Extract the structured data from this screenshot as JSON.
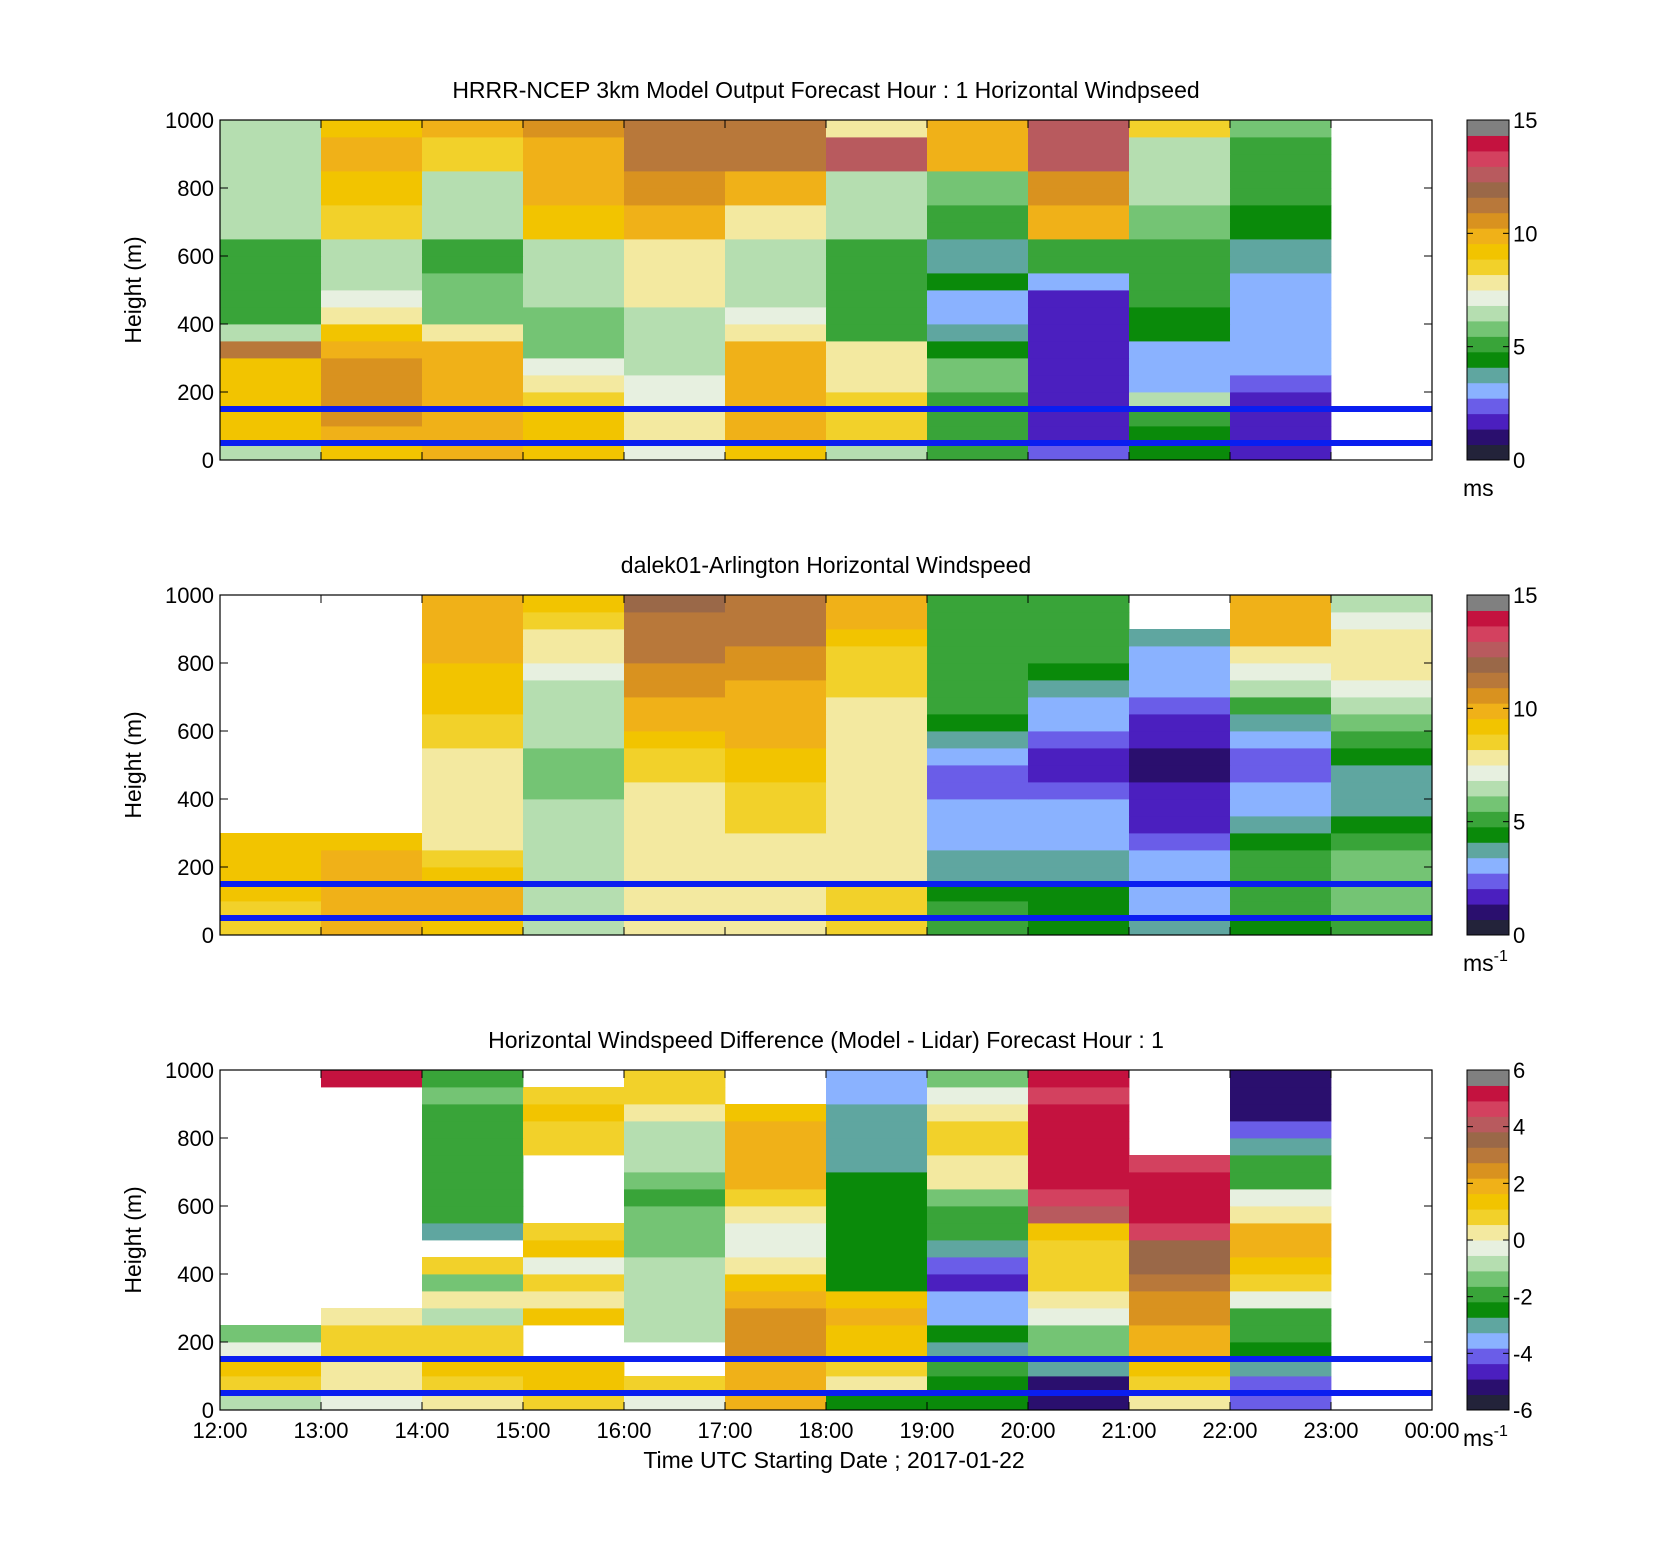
{
  "colors": {
    "windspeed_scale": [
      "#23233a",
      "#2a0f6e",
      "#4b1fbf",
      "#6a5de8",
      "#8ab2ff",
      "#5fa6a0",
      "#0a8a0a",
      "#39a439",
      "#74c474",
      "#b5deb0",
      "#e7f0e0",
      "#f3e9a0",
      "#f2d12a",
      "#f2c400",
      "#f0b118",
      "#d9921f",
      "#b8783a",
      "#9a6848",
      "#b85a5e",
      "#d3415f",
      "#c4123f",
      "#808080"
    ],
    "difference_scale": [
      "#23233a",
      "#2a0f6e",
      "#4b1fbf",
      "#6a5de8",
      "#8ab2ff",
      "#5fa6a0",
      "#0a8a0a",
      "#39a439",
      "#74c474",
      "#b5deb0",
      "#e7f0e0",
      "#f3e9a0",
      "#f2d12a",
      "#f2c400",
      "#f0b118",
      "#d9921f",
      "#b8783a",
      "#9a6848",
      "#b85a5e",
      "#d3415f",
      "#c4123f",
      "#808080"
    ],
    "reference_lines": "#0a1ef0"
  },
  "shared": {
    "x_ticks": [
      "12:00",
      "13:00",
      "14:00",
      "15:00",
      "16:00",
      "17:00",
      "18:00",
      "19:00",
      "20:00",
      "21:00",
      "22:00",
      "23:00",
      "00:00"
    ],
    "y_ticks": [
      "0",
      "200",
      "400",
      "600",
      "800",
      "1000"
    ],
    "ylabel": "Height (m)",
    "xlabel": "Time UTC  Starting Date ; 2017-01-22"
  },
  "panels": [
    {
      "title": "HRRR-NCEP 3km Model Output   Forecast Hour : 1 Horizontal Windpseed",
      "cbar_ticks": [
        "0",
        "5",
        "10",
        "15"
      ],
      "cbar_unit": "ms",
      "cbar_unit_sup": ""
    },
    {
      "title": "dalek01-Arlington  Horizontal Windspeed",
      "cbar_ticks": [
        "0",
        "5",
        "10",
        "15"
      ],
      "cbar_unit": "ms",
      "cbar_unit_sup": "-1"
    },
    {
      "title": "Horizontal Windspeed Difference (Model - Lidar) Forecast Hour : 1",
      "cbar_ticks": [
        "-6",
        "-4",
        "-2",
        "0",
        "2",
        "4",
        "6"
      ],
      "cbar_unit": "ms",
      "cbar_unit_sup": "-1"
    }
  ],
  "chart_data": [
    {
      "type": "heatmap",
      "title": "HRRR-NCEP 3km Model Output   Forecast Hour : 1 Horizontal Windpseed",
      "xlabel": "",
      "ylabel": "Height (m)",
      "x_range_hours_utc": [
        12,
        24
      ],
      "ylim": [
        0,
        1000
      ],
      "clim": [
        0,
        15
      ],
      "colorbar_unit": "ms",
      "reference_heights_m": [
        50,
        150
      ],
      "grid": false,
      "hours": [
        12,
        13,
        14,
        15,
        16,
        17,
        18,
        19,
        20,
        21,
        22
      ],
      "heights_m": [
        25,
        75,
        125,
        175,
        225,
        275,
        325,
        375,
        425,
        475,
        525,
        575,
        625,
        675,
        725,
        775,
        825,
        875,
        925,
        975
      ],
      "values": [
        [
          6.5,
          9.5,
          10,
          9.5,
          7.5,
          9.5,
          7,
          5,
          2.5,
          4.5,
          1.5
        ],
        [
          9.5,
          10.5,
          10,
          9.5,
          8.5,
          10,
          9,
          5.5,
          2,
          4.5,
          1.5
        ],
        [
          9.5,
          11,
          10.5,
          9.5,
          8,
          10.5,
          9,
          5.5,
          2,
          5,
          2
        ],
        [
          9.5,
          11,
          10,
          9,
          7.5,
          10.5,
          9,
          5.5,
          2,
          6.5,
          2
        ],
        [
          9.5,
          11,
          10.5,
          8.5,
          7.5,
          10.5,
          8.5,
          6,
          2,
          3.5,
          2.5
        ],
        [
          9.5,
          11,
          10,
          7.5,
          7,
          10.5,
          8.5,
          6,
          2,
          3,
          3
        ],
        [
          12,
          10.5,
          10,
          6,
          6.5,
          10,
          8,
          4.5,
          2,
          3.5,
          3
        ],
        [
          6.5,
          9.5,
          8,
          6,
          6.5,
          8.5,
          5,
          4,
          2,
          4.5,
          3.5
        ],
        [
          5.5,
          8,
          6,
          6,
          7,
          7.5,
          5.5,
          3.5,
          2,
          4.5,
          3.5
        ],
        [
          5.5,
          7.5,
          6,
          6.5,
          8,
          7,
          5.5,
          3,
          2,
          5,
          3
        ],
        [
          5,
          7,
          6,
          6.5,
          8.5,
          6.5,
          5,
          4.5,
          3,
          5,
          3
        ],
        [
          5,
          7,
          5.5,
          7,
          8.5,
          6.5,
          5.5,
          4,
          5,
          5,
          4
        ],
        [
          5.5,
          7,
          5.5,
          7,
          8.5,
          6.5,
          5.5,
          4,
          5,
          5.5,
          4
        ],
        [
          6.5,
          9,
          6.5,
          9.5,
          10,
          8,
          6.5,
          5,
          10,
          6,
          4.5
        ],
        [
          6.5,
          9,
          6.5,
          9.5,
          10,
          8,
          6.5,
          5,
          10,
          6,
          4.5
        ],
        [
          6.5,
          9.5,
          7,
          10,
          11,
          10,
          6.5,
          6,
          11,
          6.5,
          5
        ],
        [
          6.5,
          9.5,
          7,
          10,
          11,
          10,
          6.5,
          6,
          11,
          6.5,
          5
        ],
        [
          7,
          10,
          9,
          10.5,
          12,
          12,
          13.5,
          10,
          13,
          7,
          5.5
        ],
        [
          7,
          10,
          9,
          10.5,
          12,
          12,
          13.5,
          10,
          13,
          7,
          5.5
        ],
        [
          6.5,
          9.5,
          10,
          11,
          12,
          11.5,
          8,
          10,
          13,
          9,
          6
        ]
      ]
    },
    {
      "type": "heatmap",
      "title": "dalek01-Arlington  Horizontal Windspeed",
      "xlabel": "",
      "ylabel": "Height (m)",
      "x_range_hours_utc": [
        12,
        24
      ],
      "ylim": [
        0,
        1000
      ],
      "clim": [
        0,
        15
      ],
      "colorbar_unit": "ms-1",
      "reference_heights_m": [
        50,
        150
      ],
      "grid": false,
      "hours": [
        12,
        13,
        14,
        15,
        16,
        17,
        18,
        19,
        20,
        21,
        22,
        23
      ],
      "heights_m": [
        25,
        75,
        125,
        175,
        225,
        275,
        325,
        375,
        425,
        475,
        525,
        575,
        625,
        675,
        725,
        775,
        825,
        875,
        925,
        975
      ],
      "values": [
        [
          9,
          10,
          9.5,
          7,
          8,
          8.5,
          9,
          5,
          4.5,
          4,
          4.5,
          5.5
        ],
        [
          9,
          10.5,
          10,
          7,
          8,
          8.5,
          9,
          5,
          4.5,
          3.5,
          5,
          6
        ],
        [
          9.5,
          10.5,
          10,
          6.5,
          8,
          8.5,
          9,
          4.5,
          4.5,
          3.5,
          5.5,
          6
        ],
        [
          9.5,
          10.5,
          9.5,
          6.5,
          8,
          8.5,
          8.5,
          4,
          4,
          3,
          5,
          6
        ],
        [
          9.5,
          10,
          9,
          6.5,
          8,
          8.5,
          8.5,
          4,
          4,
          3,
          5,
          6
        ],
        [
          9.5,
          9.5,
          8.5,
          6.5,
          8,
          8.5,
          8,
          3.5,
          3.5,
          2.5,
          4.5,
          5
        ],
        [
          null,
          null,
          8.5,
          7,
          8,
          9,
          8,
          3,
          3,
          2,
          4,
          4.5
        ],
        [
          null,
          null,
          8,
          6.5,
          8.5,
          9,
          8,
          3,
          3,
          2,
          3.5,
          4
        ],
        [
          null,
          null,
          8,
          6,
          8.5,
          9,
          8.5,
          2.5,
          2.5,
          1.5,
          3,
          4
        ],
        [
          null,
          null,
          8.5,
          6,
          9,
          9.5,
          8.5,
          2.5,
          2,
          1,
          2.5,
          4
        ],
        [
          null,
          null,
          8.5,
          6,
          9,
          9.5,
          8.5,
          3,
          2,
          1,
          2.5,
          4.5
        ],
        [
          null,
          null,
          9,
          6.5,
          9.5,
          10,
          8.5,
          4,
          2.5,
          1.5,
          3,
          5
        ],
        [
          null,
          null,
          9,
          6.5,
          10,
          10,
          8.5,
          4.5,
          3,
          2,
          4,
          6
        ],
        [
          null,
          null,
          9.5,
          7,
          10.5,
          10.5,
          8.5,
          5,
          3.5,
          2.5,
          5,
          7
        ],
        [
          null,
          null,
          9.5,
          7,
          11,
          10.5,
          9,
          5,
          4,
          3,
          6.5,
          7.5
        ],
        [
          null,
          null,
          9.5,
          7.5,
          11,
          11,
          9,
          5,
          4.5,
          3,
          7.5,
          8
        ],
        [
          null,
          null,
          10,
          8,
          11.5,
          11,
          9,
          5,
          5,
          3,
          8.5,
          8
        ],
        [
          null,
          null,
          10,
          8.5,
          12,
          11.5,
          9.5,
          5,
          5,
          4,
          10,
          8
        ],
        [
          null,
          null,
          10.5,
          9,
          12,
          12,
          10,
          5,
          5.5,
          null,
          10.5,
          7.5
        ],
        [
          null,
          null,
          10.5,
          9.5,
          12.5,
          12,
          10,
          5,
          5.5,
          null,
          10.5,
          7
        ]
      ]
    },
    {
      "type": "heatmap",
      "title": "Horizontal Windspeed Difference (Model - Lidar) Forecast Hour : 1",
      "xlabel": "Time UTC  Starting Date ; 2017-01-22",
      "ylabel": "Height (m)",
      "x_range_hours_utc": [
        12,
        24
      ],
      "ylim": [
        0,
        1000
      ],
      "clim": [
        -6,
        6
      ],
      "colorbar_unit": "ms-1",
      "reference_heights_m": [
        50,
        150
      ],
      "grid": false,
      "hours": [
        12,
        13,
        14,
        15,
        16,
        17,
        18,
        19,
        20,
        21,
        22
      ],
      "heights_m": [
        25,
        75,
        125,
        175,
        225,
        275,
        325,
        375,
        425,
        475,
        525,
        575,
        625,
        675,
        725,
        775,
        825,
        875,
        925,
        975
      ],
      "values": [
        [
          -0.5,
          0,
          0.5,
          1,
          0,
          2,
          -2.5,
          -2.5,
          -5,
          0.5,
          -4
        ],
        [
          1,
          0.5,
          1,
          1.5,
          1,
          2,
          0.5,
          -2.5,
          -5,
          1,
          -4
        ],
        [
          1.5,
          0.5,
          1.5,
          1.5,
          null,
          2.5,
          1,
          -2,
          -3,
          1.5,
          -3
        ],
        [
          0,
          1,
          1,
          null,
          null,
          3,
          1.5,
          -3,
          -1,
          2,
          -2.5
        ],
        [
          -1,
          1,
          1,
          null,
          -0.5,
          3,
          1.5,
          -2.5,
          -1,
          2.5,
          -2
        ],
        [
          null,
          0.5,
          -0.5,
          1.5,
          -0.5,
          3,
          2,
          -3.5,
          0,
          3,
          -1.5
        ],
        [
          null,
          null,
          0.5,
          0.5,
          -0.5,
          2.5,
          1.5,
          -3.5,
          0.5,
          3,
          0
        ],
        [
          null,
          null,
          -1,
          1,
          -0.5,
          1.5,
          -2.5,
          -4.5,
          1,
          3.5,
          1
        ],
        [
          null,
          null,
          1,
          0,
          -0.5,
          0.5,
          -2.5,
          -4,
          1,
          4,
          1.5
        ],
        [
          null,
          null,
          null,
          1.5,
          -1,
          0,
          -2.5,
          -3,
          1,
          4,
          2
        ],
        [
          null,
          null,
          -3,
          1,
          -1,
          0,
          -2.5,
          -1.5,
          1.5,
          5,
          2
        ],
        [
          null,
          null,
          -1.5,
          null,
          -1,
          0.5,
          -2.5,
          -1.5,
          4.5,
          6,
          0.5
        ],
        [
          null,
          null,
          -2,
          null,
          -1.5,
          1,
          -2.5,
          -1,
          5,
          6,
          0
        ],
        [
          null,
          null,
          -2,
          null,
          -1,
          2,
          -2.5,
          0.5,
          6,
          6,
          -1.5
        ],
        [
          null,
          null,
          -2,
          null,
          -0.5,
          2,
          -3,
          0.5,
          6,
          5,
          -1.5
        ],
        [
          null,
          null,
          -2,
          1,
          -0.5,
          2.5,
          -3,
          1,
          6,
          null,
          -3
        ],
        [
          null,
          null,
          -1.5,
          1,
          -0.5,
          2,
          -3,
          1,
          6,
          null,
          -4
        ],
        [
          null,
          null,
          -1.5,
          1.5,
          0.5,
          1.5,
          -3,
          0.5,
          6,
          null,
          -5
        ],
        [
          null,
          null,
          -1,
          1,
          1,
          null,
          -3.5,
          0,
          5,
          null,
          -5
        ],
        [
          null,
          6,
          -2,
          null,
          1,
          null,
          -3.5,
          -1,
          6,
          null,
          -5
        ]
      ]
    }
  ]
}
